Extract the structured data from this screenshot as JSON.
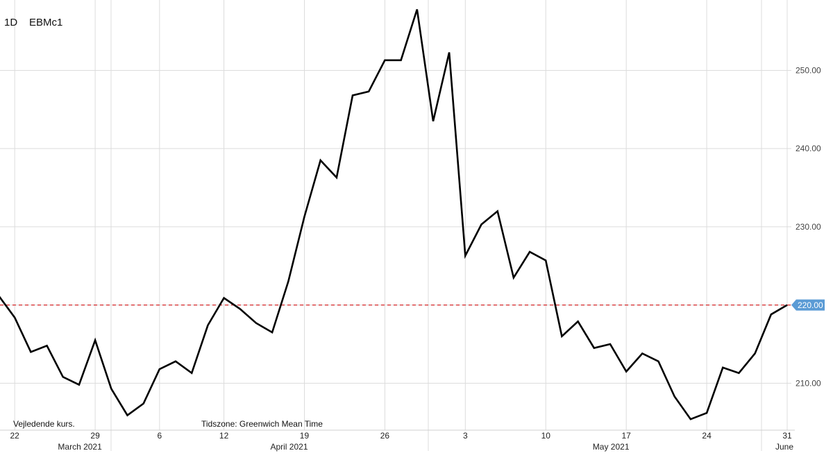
{
  "header": {
    "interval": "1D",
    "symbol": "EBMc1"
  },
  "notes": {
    "left": "Vejledende kurs.",
    "timezone": "Tidszone: Greenwich Mean Time"
  },
  "colors": {
    "line": "#000000",
    "reference": "#d62728",
    "last_price_badge": "#5b9bd5",
    "grid": "#dcdcdc"
  },
  "chart_data": {
    "type": "line",
    "series": [
      {
        "points": [
          [
            "2021-03-19",
            221.2
          ],
          [
            "2021-03-22",
            218.4
          ],
          [
            "2021-03-23",
            214.0
          ],
          [
            "2021-03-24",
            214.8
          ],
          [
            "2021-03-25",
            210.8
          ],
          [
            "2021-03-26",
            209.8
          ],
          [
            "2021-03-29",
            215.5
          ],
          [
            "2021-03-30",
            209.3
          ],
          [
            "2021-03-31",
            205.9
          ],
          [
            "2021-04-01",
            207.4
          ],
          [
            "2021-04-06",
            211.8
          ],
          [
            "2021-04-07",
            212.8
          ],
          [
            "2021-04-08",
            211.3
          ],
          [
            "2021-04-09",
            217.4
          ],
          [
            "2021-04-12",
            220.9
          ],
          [
            "2021-04-13",
            219.5
          ],
          [
            "2021-04-14",
            217.7
          ],
          [
            "2021-04-15",
            216.5
          ],
          [
            "2021-04-16",
            223.0
          ],
          [
            "2021-04-19",
            231.3
          ],
          [
            "2021-04-20",
            238.5
          ],
          [
            "2021-04-21",
            236.3
          ],
          [
            "2021-04-22",
            246.8
          ],
          [
            "2021-04-23",
            247.3
          ],
          [
            "2021-04-26",
            251.3
          ],
          [
            "2021-04-27",
            251.3
          ],
          [
            "2021-04-28",
            257.8
          ],
          [
            "2021-04-29",
            243.5
          ],
          [
            "2021-04-30",
            252.3
          ],
          [
            "2021-05-03",
            226.3
          ],
          [
            "2021-05-04",
            230.3
          ],
          [
            "2021-05-05",
            232.0
          ],
          [
            "2021-05-06",
            223.5
          ],
          [
            "2021-05-07",
            226.8
          ],
          [
            "2021-05-10",
            225.7
          ],
          [
            "2021-05-11",
            216.0
          ],
          [
            "2021-05-12",
            217.9
          ],
          [
            "2021-05-13",
            214.5
          ],
          [
            "2021-05-14",
            215.0
          ],
          [
            "2021-05-17",
            211.5
          ],
          [
            "2021-05-18",
            213.8
          ],
          [
            "2021-05-19",
            212.8
          ],
          [
            "2021-05-20",
            208.3
          ],
          [
            "2021-05-21",
            205.4
          ],
          [
            "2021-05-24",
            206.2
          ],
          [
            "2021-05-25",
            212.0
          ],
          [
            "2021-05-26",
            211.3
          ],
          [
            "2021-05-27",
            213.8
          ],
          [
            "2021-05-28",
            218.8
          ],
          [
            "2021-05-31",
            220.0
          ]
        ]
      }
    ],
    "y_ticks": [
      "210.00",
      "220.00",
      "230.00",
      "240.00",
      "250.00"
    ],
    "y_tick_values": [
      210,
      220,
      230,
      240,
      250
    ],
    "ylim": [
      204,
      259
    ],
    "x_ticks": [
      {
        "date": "2021-03-22",
        "label": "22"
      },
      {
        "date": "2021-03-29",
        "label": "29"
      },
      {
        "date": "2021-04-06",
        "label": "6"
      },
      {
        "date": "2021-04-12",
        "label": "12"
      },
      {
        "date": "2021-04-19",
        "label": "19"
      },
      {
        "date": "2021-04-26",
        "label": "26"
      },
      {
        "date": "2021-05-03",
        "label": "3"
      },
      {
        "date": "2021-05-10",
        "label": "10"
      },
      {
        "date": "2021-05-17",
        "label": "17"
      },
      {
        "date": "2021-05-24",
        "label": "24"
      },
      {
        "date": "2021-05-31",
        "label": "31"
      }
    ],
    "months": [
      {
        "date": "2021-03-29",
        "label": "March 2021"
      },
      {
        "date": "2021-04-19",
        "label": "April 2021"
      },
      {
        "date": "2021-05-17",
        "label": "May 2021"
      },
      {
        "date": "2021-05-31",
        "label": "June"
      }
    ],
    "reference_line": {
      "value": 220.0,
      "label": "220.00"
    },
    "grid": true
  }
}
